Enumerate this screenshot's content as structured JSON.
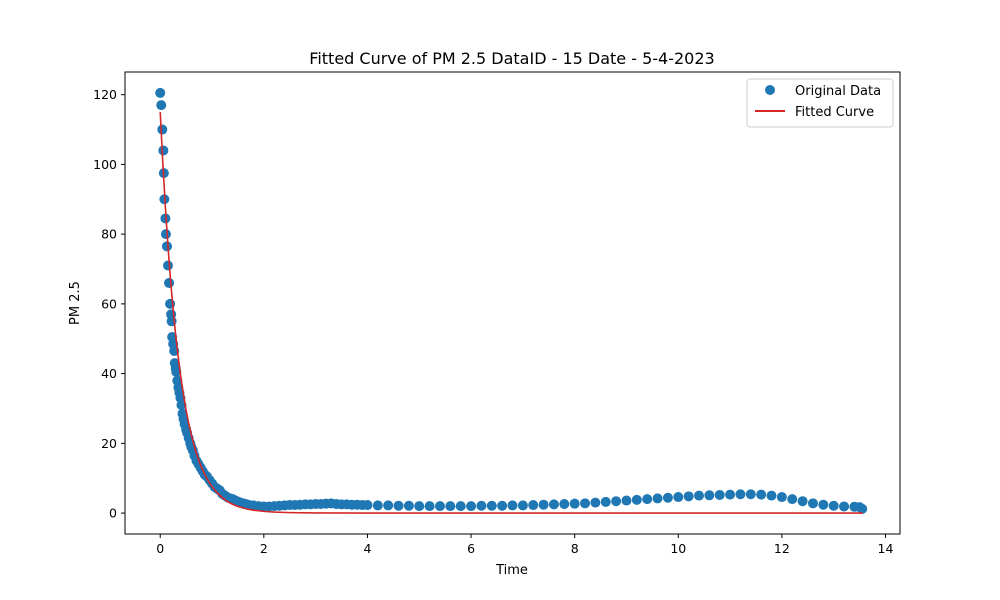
{
  "chart_data": {
    "type": "scatter",
    "title": "Fitted Curve of PM 2.5 DataID - 15 Date - 5-4-2023",
    "xlabel": "Time",
    "ylabel": "PM 2.5",
    "xlim": [
      -0.68,
      14.28
    ],
    "ylim": [
      -6.0,
      126.5
    ],
    "xticks": [
      0,
      2,
      4,
      6,
      8,
      10,
      12,
      14
    ],
    "yticks": [
      0,
      20,
      40,
      60,
      80,
      100,
      120
    ],
    "grid": false,
    "legend_position": "top-right",
    "series": [
      {
        "name": "Original Data",
        "kind": "scatter",
        "color": "#1f77b4",
        "points": [
          [
            0.0,
            120.5
          ],
          [
            0.02,
            117.0
          ],
          [
            0.04,
            110.0
          ],
          [
            0.06,
            104.0
          ],
          [
            0.07,
            97.5
          ],
          [
            0.08,
            90.0
          ],
          [
            0.1,
            84.5
          ],
          [
            0.11,
            80.0
          ],
          [
            0.13,
            76.5
          ],
          [
            0.15,
            71.0
          ],
          [
            0.17,
            66.0
          ],
          [
            0.19,
            60.0
          ],
          [
            0.21,
            57.0
          ],
          [
            0.22,
            55.0
          ],
          [
            0.23,
            50.5
          ],
          [
            0.25,
            48.5
          ],
          [
            0.27,
            46.5
          ],
          [
            0.28,
            43.0
          ],
          [
            0.3,
            41.5
          ],
          [
            0.31,
            40.5
          ],
          [
            0.33,
            38.0
          ],
          [
            0.35,
            36.0
          ],
          [
            0.37,
            34.5
          ],
          [
            0.39,
            33.0
          ],
          [
            0.41,
            31.0
          ],
          [
            0.43,
            28.5
          ],
          [
            0.45,
            27.0
          ],
          [
            0.47,
            25.5
          ],
          [
            0.5,
            24.0
          ],
          [
            0.52,
            23.0
          ],
          [
            0.55,
            21.5
          ],
          [
            0.58,
            20.0
          ],
          [
            0.6,
            19.0
          ],
          [
            0.63,
            18.0
          ],
          [
            0.66,
            16.5
          ],
          [
            0.7,
            15.0
          ],
          [
            0.74,
            14.0
          ],
          [
            0.78,
            13.0
          ],
          [
            0.82,
            12.0
          ],
          [
            0.86,
            11.0
          ],
          [
            0.9,
            10.5
          ],
          [
            0.95,
            9.5
          ],
          [
            1.0,
            8.5
          ],
          [
            1.05,
            7.5
          ],
          [
            1.1,
            7.0
          ],
          [
            1.15,
            6.5
          ],
          [
            1.2,
            5.5
          ],
          [
            1.25,
            5.0
          ],
          [
            1.3,
            4.5
          ],
          [
            1.35,
            4.2
          ],
          [
            1.4,
            4.0
          ],
          [
            1.45,
            3.6
          ],
          [
            1.5,
            3.3
          ],
          [
            1.55,
            3.0
          ],
          [
            1.6,
            2.8
          ],
          [
            1.65,
            2.6
          ],
          [
            1.7,
            2.4
          ],
          [
            1.8,
            2.2
          ],
          [
            1.9,
            2.0
          ],
          [
            2.0,
            1.9
          ],
          [
            2.1,
            1.9
          ],
          [
            2.2,
            2.0
          ],
          [
            2.3,
            2.1
          ],
          [
            2.4,
            2.2
          ],
          [
            2.5,
            2.3
          ],
          [
            2.6,
            2.3
          ],
          [
            2.7,
            2.4
          ],
          [
            2.8,
            2.5
          ],
          [
            2.9,
            2.5
          ],
          [
            3.0,
            2.6
          ],
          [
            3.1,
            2.6
          ],
          [
            3.2,
            2.7
          ],
          [
            3.3,
            2.8
          ],
          [
            3.4,
            2.6
          ],
          [
            3.5,
            2.5
          ],
          [
            3.6,
            2.5
          ],
          [
            3.7,
            2.4
          ],
          [
            3.8,
            2.4
          ],
          [
            3.9,
            2.3
          ],
          [
            4.0,
            2.3
          ],
          [
            4.2,
            2.2
          ],
          [
            4.4,
            2.2
          ],
          [
            4.6,
            2.1
          ],
          [
            4.8,
            2.1
          ],
          [
            5.0,
            2.0
          ],
          [
            5.2,
            2.0
          ],
          [
            5.4,
            2.0
          ],
          [
            5.6,
            2.0
          ],
          [
            5.8,
            2.0
          ],
          [
            6.0,
            2.0
          ],
          [
            6.2,
            2.1
          ],
          [
            6.4,
            2.1
          ],
          [
            6.6,
            2.1
          ],
          [
            6.8,
            2.2
          ],
          [
            7.0,
            2.2
          ],
          [
            7.2,
            2.3
          ],
          [
            7.4,
            2.4
          ],
          [
            7.6,
            2.5
          ],
          [
            7.8,
            2.6
          ],
          [
            8.0,
            2.7
          ],
          [
            8.2,
            2.8
          ],
          [
            8.4,
            3.0
          ],
          [
            8.6,
            3.2
          ],
          [
            8.8,
            3.4
          ],
          [
            9.0,
            3.6
          ],
          [
            9.2,
            3.8
          ],
          [
            9.4,
            4.0
          ],
          [
            9.6,
            4.2
          ],
          [
            9.8,
            4.4
          ],
          [
            10.0,
            4.6
          ],
          [
            10.2,
            4.8
          ],
          [
            10.4,
            5.0
          ],
          [
            10.6,
            5.1
          ],
          [
            10.8,
            5.2
          ],
          [
            11.0,
            5.3
          ],
          [
            11.2,
            5.4
          ],
          [
            11.4,
            5.4
          ],
          [
            11.6,
            5.3
          ],
          [
            11.8,
            5.0
          ],
          [
            12.0,
            4.6
          ],
          [
            12.2,
            4.0
          ],
          [
            12.4,
            3.4
          ],
          [
            12.6,
            2.8
          ],
          [
            12.8,
            2.4
          ],
          [
            13.0,
            2.1
          ],
          [
            13.2,
            1.9
          ],
          [
            13.4,
            1.8
          ],
          [
            13.5,
            1.7
          ],
          [
            13.55,
            1.2
          ]
        ]
      },
      {
        "name": "Fitted Curve",
        "kind": "line",
        "color": "#d62728",
        "x": [
          0.0,
          0.05,
          0.1,
          0.15,
          0.2,
          0.25,
          0.3,
          0.35,
          0.4,
          0.45,
          0.5,
          0.55,
          0.6,
          0.65,
          0.7,
          0.75,
          0.8,
          0.85,
          0.9,
          0.95,
          1.0,
          1.1,
          1.2,
          1.3,
          1.4,
          1.5,
          1.6,
          1.7,
          1.8,
          2.0,
          2.2,
          2.5,
          3.0,
          4.0,
          5.0,
          6.0,
          7.0,
          8.0,
          9.0,
          10.0,
          11.0,
          12.0,
          13.0,
          13.56
        ],
        "y": [
          115.0,
          100.4,
          87.6,
          76.5,
          66.7,
          58.2,
          50.8,
          44.4,
          38.7,
          33.8,
          29.5,
          25.7,
          22.5,
          19.6,
          17.1,
          14.9,
          13.0,
          11.4,
          9.9,
          8.7,
          7.6,
          5.8,
          4.4,
          3.3,
          2.5,
          1.9,
          1.45,
          1.1,
          0.84,
          0.49,
          0.28,
          0.13,
          0.03,
          0.0,
          0.0,
          0.0,
          0.0,
          0.0,
          0.0,
          0.0,
          0.0,
          0.0,
          0.0,
          0.0
        ]
      }
    ]
  }
}
